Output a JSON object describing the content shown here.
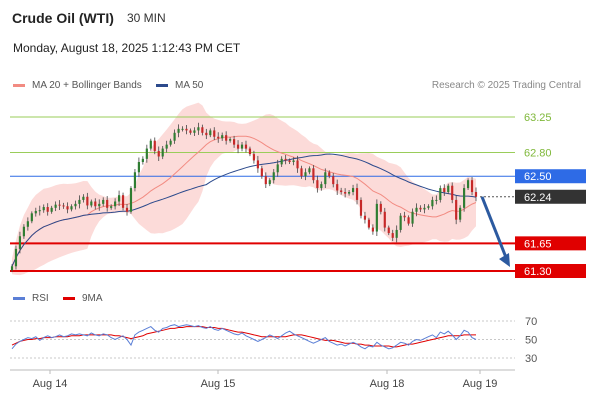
{
  "header": {
    "instrument": "Crude Oil (WTI)",
    "interval": "30 MIN",
    "datetime": "Monday, August 18, 2025 1:12:43 PM CET"
  },
  "legend": {
    "bollinger": {
      "label": "MA 20 + Bollinger Bands",
      "color": "#f28b82"
    },
    "ma50": {
      "label": "MA 50",
      "color": "#2c4a8c"
    },
    "credit": "Research © 2025 Trading Central"
  },
  "rsi_legend": {
    "rsi": {
      "label": "RSI",
      "color": "#5b7fd6"
    },
    "ma9": {
      "label": "9MA",
      "color": "#e00000"
    }
  },
  "chart_data": [
    {
      "type": "candlestick",
      "title": "Crude Oil (WTI)",
      "ylim": [
        61.2,
        63.35
      ],
      "x_labels": [
        "Aug 14",
        "Aug 15",
        "Aug 18",
        "Aug 19"
      ],
      "levels": [
        {
          "value": 63.25,
          "label": "63.25",
          "kind": "resistance",
          "color": "#9acd5a"
        },
        {
          "value": 62.8,
          "label": "62.80",
          "kind": "resistance",
          "color": "#9acd5a"
        },
        {
          "value": 62.5,
          "label": "62.50",
          "kind": "pivot",
          "color": "#2e6be6"
        },
        {
          "value": 62.24,
          "label": "62.24",
          "kind": "last-price",
          "color": "#333333"
        },
        {
          "value": 61.65,
          "label": "61.65",
          "kind": "support",
          "color": "#e00000"
        },
        {
          "value": 61.3,
          "label": "61.30",
          "kind": "support",
          "color": "#e00000"
        }
      ],
      "series": [
        {
          "name": "MA 20 + Bollinger Bands",
          "color": "#f28b82"
        },
        {
          "name": "MA 50",
          "color": "#2c4a8c"
        }
      ],
      "forecast_arrow": {
        "from": 62.24,
        "to": 61.3
      },
      "close": [
        61.36,
        61.58,
        61.74,
        61.86,
        61.93,
        62.03,
        62.06,
        62.07,
        62.11,
        62.05,
        62.1,
        62.14,
        62.13,
        62.12,
        62.08,
        62.12,
        62.15,
        62.2,
        62.24,
        62.13,
        62.18,
        62.12,
        62.15,
        62.2,
        62.1,
        62.12,
        62.18,
        62.26,
        62.1,
        62.05,
        62.35,
        62.55,
        62.68,
        62.72,
        62.85,
        62.95,
        62.82,
        62.75,
        62.85,
        62.9,
        62.95,
        63.05,
        63.1,
        63.1,
        63.08,
        63.05,
        63.08,
        63.12,
        63.05,
        63.02,
        63.08,
        63.0,
        62.98,
        63.02,
        62.95,
        62.97,
        62.9,
        62.85,
        62.9,
        62.85,
        62.78,
        62.7,
        62.6,
        62.5,
        62.4,
        62.45,
        62.55,
        62.65,
        62.72,
        62.7,
        62.68,
        62.7,
        62.6,
        62.5,
        62.55,
        62.6,
        62.45,
        62.35,
        62.4,
        62.55,
        62.5,
        62.4,
        62.32,
        62.3,
        62.28,
        62.3,
        62.35,
        62.2,
        62.0,
        61.95,
        61.85,
        61.8,
        62.15,
        62.05,
        61.85,
        61.78,
        61.72,
        61.82,
        62.0,
        61.98,
        61.9,
        62.05,
        62.1,
        62.08,
        62.1,
        62.12,
        62.2,
        62.2,
        62.35,
        62.3,
        62.38,
        62.2,
        61.95,
        62.1,
        62.35,
        62.45,
        62.3,
        62.24
      ]
    },
    {
      "type": "line",
      "title": "RSI",
      "ylim": [
        30,
        70
      ],
      "y_ticks": [
        70,
        50,
        30
      ],
      "series": [
        {
          "name": "RSI",
          "color": "#5b7fd6"
        },
        {
          "name": "9MA",
          "color": "#e00000"
        }
      ],
      "rsi": [
        40,
        45,
        48,
        50,
        52,
        51,
        53,
        49,
        52,
        54,
        52,
        53,
        55,
        53,
        54,
        56,
        55,
        56,
        55,
        54,
        57,
        55,
        54,
        56,
        55,
        52,
        50,
        52,
        54,
        50,
        44,
        55,
        58,
        60,
        62,
        64,
        60,
        58,
        62,
        63,
        65,
        66,
        64,
        65,
        66,
        65,
        64,
        65,
        63,
        62,
        64,
        61,
        60,
        62,
        60,
        58,
        56,
        55,
        57,
        54,
        52,
        50,
        48,
        50,
        52,
        55,
        53,
        51,
        54,
        57,
        59,
        56,
        54,
        52,
        50,
        48,
        46,
        48,
        50,
        52,
        48,
        46,
        44,
        45,
        43,
        45,
        47,
        45,
        42,
        40,
        43,
        42,
        47,
        44,
        42,
        40,
        41,
        44,
        47,
        46,
        44,
        48,
        50,
        49,
        51,
        53,
        55,
        52,
        58,
        56,
        59,
        55,
        50,
        54,
        60,
        58,
        52,
        50
      ],
      "ma9": [
        44,
        46,
        48,
        49,
        50,
        50,
        51,
        51,
        52,
        52,
        52,
        53,
        53,
        53,
        53,
        54,
        54,
        54,
        55,
        55,
        55,
        55,
        55,
        55,
        55,
        55,
        54,
        54,
        53,
        52,
        51,
        52,
        53,
        54,
        56,
        57,
        58,
        59,
        60,
        61,
        62,
        62,
        63,
        63,
        64,
        64,
        64,
        64,
        64,
        63,
        63,
        63,
        62,
        62,
        61,
        60,
        59,
        58,
        58,
        57,
        56,
        55,
        54,
        53,
        53,
        53,
        53,
        53,
        53,
        53,
        54,
        55,
        55,
        55,
        54,
        53,
        52,
        51,
        50,
        49,
        49,
        49,
        48,
        47,
        46,
        46,
        46,
        45,
        45,
        44,
        44,
        43,
        43,
        43,
        43,
        43,
        42,
        42,
        43,
        44,
        45,
        45,
        46,
        47,
        48,
        49,
        50,
        51,
        52,
        53,
        54,
        54,
        54,
        54,
        55,
        55,
        55,
        55
      ]
    }
  ]
}
